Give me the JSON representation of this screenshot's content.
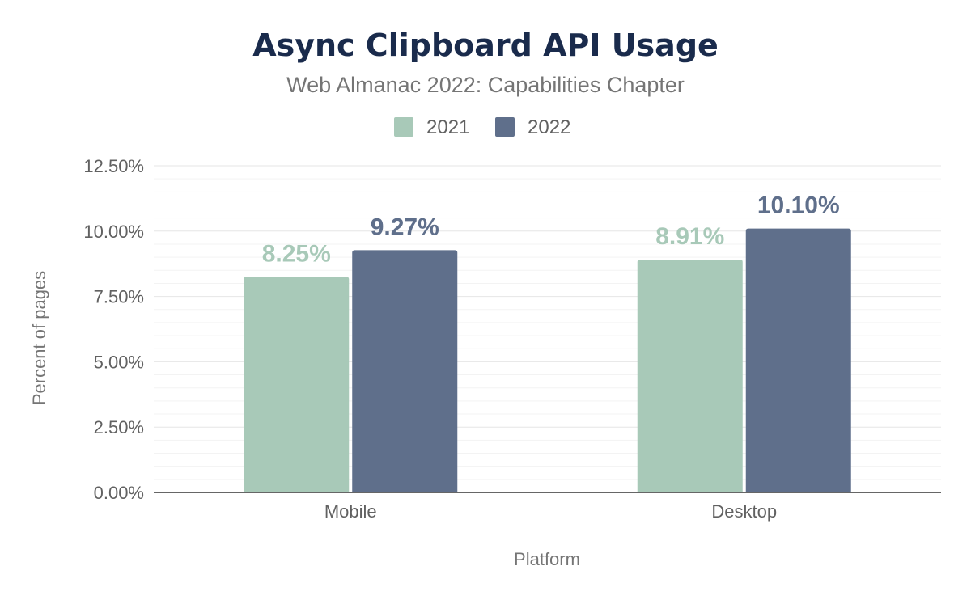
{
  "chart_data": {
    "type": "bar",
    "title": "Async Clipboard API Usage",
    "subtitle": "Web Almanac 2022: Capabilities Chapter",
    "xlabel": "Platform",
    "ylabel": "Percent of pages",
    "categories": [
      "Mobile",
      "Desktop"
    ],
    "series": [
      {
        "name": "2021",
        "values": [
          8.25,
          8.91
        ],
        "labels": [
          "8.25%",
          "8.91%"
        ],
        "color": "#a8c9b8"
      },
      {
        "name": "2022",
        "values": [
          9.27,
          10.1
        ],
        "labels": [
          "9.27%",
          "10.10%"
        ],
        "color": "#5f6f8b"
      }
    ],
    "ylim": [
      0,
      12.5
    ],
    "yticks": [
      0,
      2.5,
      5,
      7.5,
      10,
      12.5
    ],
    "ytick_labels": [
      "0.00%",
      "2.50%",
      "5.00%",
      "7.50%",
      "10.00%",
      "12.50%"
    ],
    "grid": true,
    "legend_position": "top-center"
  }
}
